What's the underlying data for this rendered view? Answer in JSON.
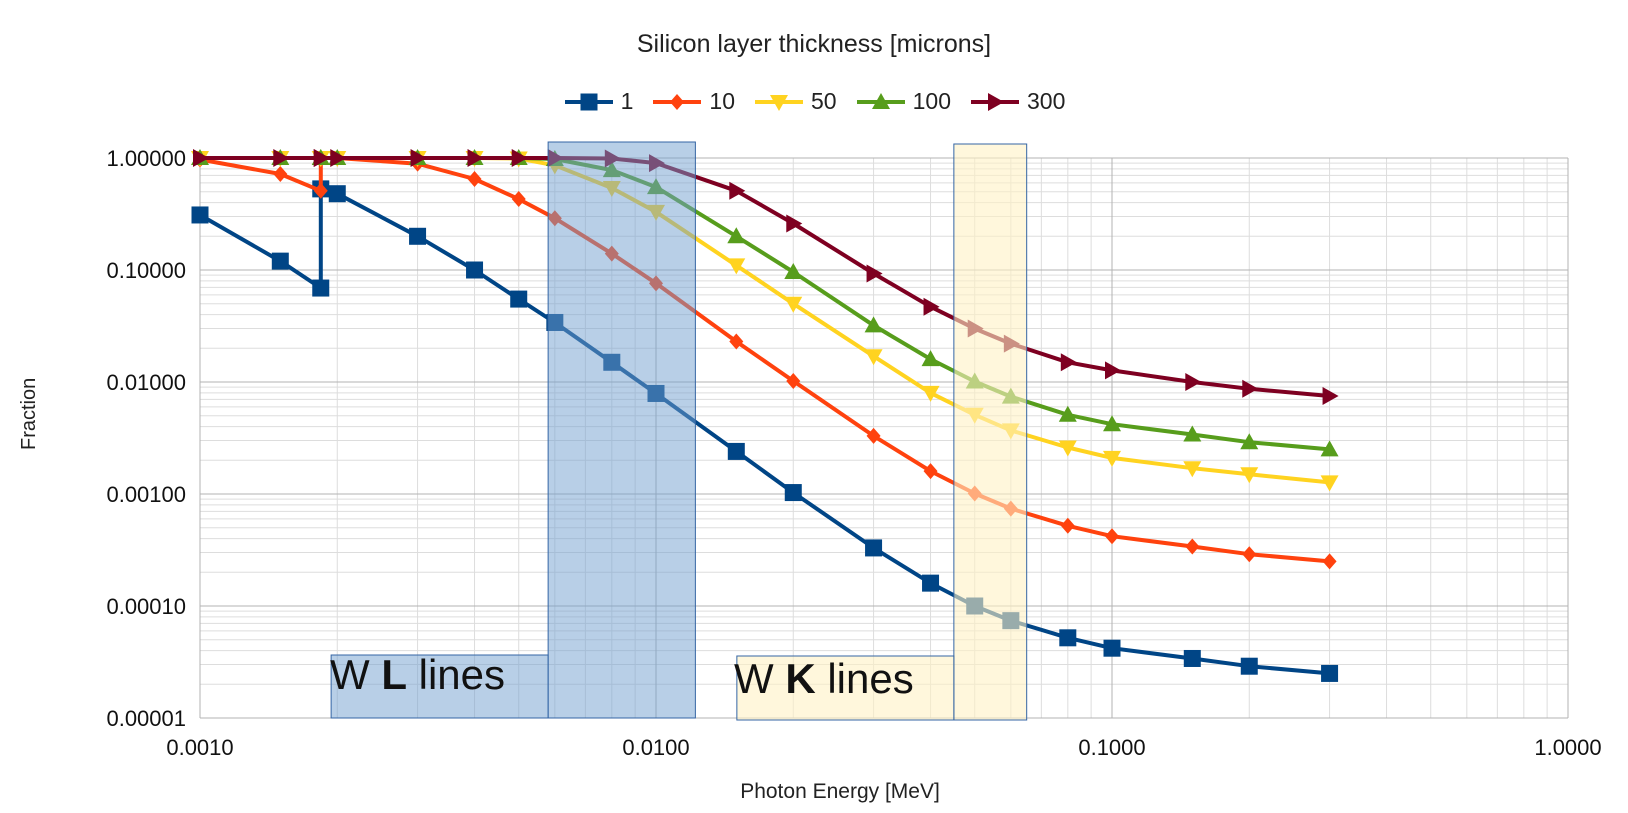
{
  "chart_data": {
    "type": "line",
    "title": "Silicon layer thickness [microns]",
    "xlabel": "Photon Energy [MeV]",
    "ylabel": "Fraction",
    "x_scale": "log",
    "y_scale": "log",
    "xlim": [
      0.001,
      1.0
    ],
    "ylim": [
      1e-05,
      1.0
    ],
    "grid": true,
    "legend_position": "top",
    "x_ticks": [
      "0.0010",
      "0.0100",
      "0.1000",
      "1.0000"
    ],
    "y_ticks": [
      "1.00000",
      "0.10000",
      "0.01000",
      "0.00100",
      "0.00010",
      "0.00001"
    ],
    "x": [
      0.001,
      0.0015,
      0.00184,
      0.00184,
      0.002,
      0.003,
      0.004,
      0.005,
      0.006,
      0.008,
      0.01,
      0.015,
      0.02,
      0.03,
      0.04,
      0.05,
      0.06,
      0.08,
      0.1,
      0.15,
      0.2,
      0.3
    ],
    "series": [
      {
        "name": "1",
        "color": "#004586",
        "marker": "square",
        "values": [
          0.31,
          0.12,
          0.069,
          0.53,
          0.48,
          0.2,
          0.1,
          0.055,
          0.034,
          0.015,
          0.0079,
          0.0024,
          0.00103,
          0.00033,
          0.00016,
          0.0001,
          7.4e-05,
          5.2e-05,
          4.2e-05,
          3.4e-05,
          2.9e-05,
          2.5e-05
        ]
      },
      {
        "name": "10",
        "color": "#ff420e",
        "marker": "diamond",
        "values": [
          0.97,
          0.72,
          0.51,
          1.0,
          1.0,
          0.89,
          0.65,
          0.43,
          0.29,
          0.14,
          0.076,
          0.023,
          0.0102,
          0.0033,
          0.0016,
          0.00101,
          0.00074,
          0.00052,
          0.00042,
          0.00034,
          0.00029,
          0.00025
        ]
      },
      {
        "name": "50",
        "color": "#ffd320",
        "marker": "triangle-down",
        "values": [
          1.0,
          1.0,
          1.0,
          1.0,
          1.0,
          1.0,
          1.0,
          0.99,
          0.86,
          0.54,
          0.33,
          0.11,
          0.05,
          0.017,
          0.008,
          0.0051,
          0.0037,
          0.0026,
          0.0021,
          0.0017,
          0.0015,
          0.00127
        ]
      },
      {
        "name": "100",
        "color": "#579d1c",
        "marker": "triangle-up",
        "values": [
          1.0,
          1.0,
          1.0,
          1.0,
          1.0,
          1.0,
          1.0,
          1.0,
          0.98,
          0.78,
          0.55,
          0.2,
          0.096,
          0.032,
          0.016,
          0.0101,
          0.0074,
          0.0051,
          0.0042,
          0.0034,
          0.0029,
          0.0025
        ]
      },
      {
        "name": "300",
        "color": "#7e0021",
        "marker": "triangle-right",
        "values": [
          1.0,
          1.0,
          1.0,
          1.0,
          1.0,
          1.0,
          1.0,
          1.0,
          1.0,
          0.99,
          0.9,
          0.51,
          0.26,
          0.093,
          0.047,
          0.03,
          0.022,
          0.015,
          0.0127,
          0.01,
          0.0087,
          0.0075
        ]
      }
    ],
    "annotations": [
      {
        "x_range": [
          0.0058,
          0.0122
        ],
        "fill": "#729fcf",
        "label_pre": "W ",
        "label_bold": "L",
        "label_post": " lines"
      },
      {
        "x_range": [
          0.045,
          0.065
        ],
        "fill": "#fff2c4",
        "label_pre": "W ",
        "label_bold": "K",
        "label_post": " lines"
      }
    ]
  }
}
